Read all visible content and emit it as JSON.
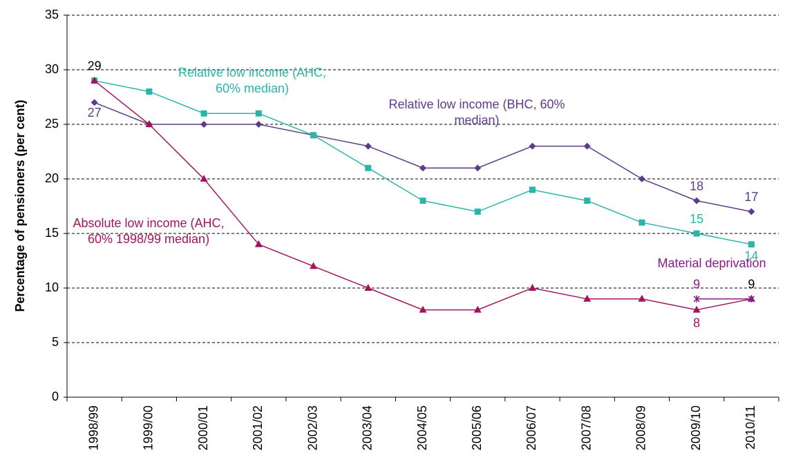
{
  "chart_data": {
    "type": "line",
    "y_label": "Percentage of pensioners (per cent)",
    "categories": [
      "1998/99",
      "1999/00",
      "2000/01",
      "2001/02",
      "2002/03",
      "2003/04",
      "2004/05",
      "2005/06",
      "2006/07",
      "2007/08",
      "2008/09",
      "2009/10",
      "2010/11"
    ],
    "ylim": [
      0,
      35
    ],
    "yticks": [
      0,
      5,
      10,
      15,
      20,
      25,
      30,
      35
    ],
    "grid": true,
    "series": [
      {
        "name": "Relative low income (BHC, 60% median)",
        "color": "#5b3b8c",
        "marker": "diamond",
        "values": [
          27,
          25,
          25,
          25,
          24,
          23,
          21,
          21,
          23,
          23,
          20,
          18,
          17
        ],
        "value_labels": [
          "27",
          null,
          null,
          null,
          null,
          null,
          null,
          null,
          null,
          null,
          null,
          "18",
          "17"
        ]
      },
      {
        "name": "Relative low income (AHC, 60% median)",
        "color": "#2bb5a8",
        "marker": "square",
        "values": [
          29,
          28,
          26,
          26,
          24,
          21,
          18,
          17,
          19,
          18,
          16,
          15,
          14
        ],
        "value_labels": [
          null,
          null,
          null,
          null,
          null,
          null,
          null,
          null,
          null,
          null,
          null,
          "15",
          "14"
        ]
      },
      {
        "name": "Absolute low income (AHC, 60% 1998/99 median)",
        "color": "#a3145f",
        "marker": "triangle",
        "values": [
          29,
          25,
          20,
          14,
          12,
          10,
          8,
          8,
          10,
          9,
          9,
          8,
          9
        ],
        "value_labels": [
          "29",
          null,
          null,
          null,
          null,
          null,
          null,
          null,
          null,
          null,
          null,
          "8",
          "9"
        ]
      },
      {
        "name": "Material deprivation",
        "color": "#8b1a8b",
        "marker": "star",
        "values": [
          null,
          null,
          null,
          null,
          null,
          null,
          null,
          null,
          null,
          null,
          null,
          9,
          9
        ],
        "value_labels": [
          null,
          null,
          null,
          null,
          null,
          null,
          null,
          null,
          null,
          null,
          null,
          "9",
          null
        ]
      }
    ]
  }
}
